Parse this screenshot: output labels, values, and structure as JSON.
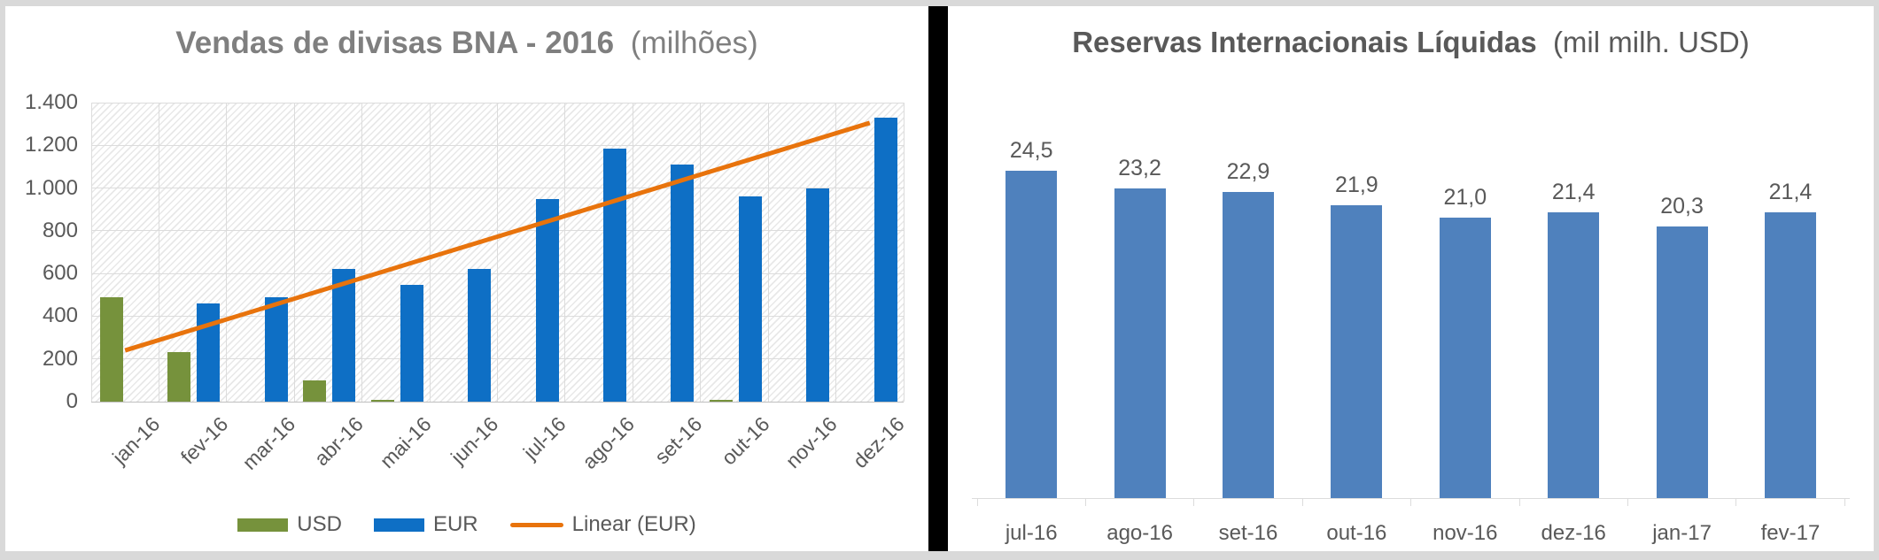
{
  "style": {
    "background": "#d9d9d9",
    "panel_background": "#ffffff",
    "divider_color": "#000000",
    "left_title_color": "#7f7f7f",
    "right_title_color": "#595959",
    "axis_label_color": "#595959",
    "gridline_color": "#dcdcdc",
    "baseline_color": "#bfbfbf",
    "usd_green": "#76923C",
    "eur_blue": "#0E6FC5",
    "trend_orange": "#E8730C",
    "reserves_blue": "#4F81BD"
  },
  "chart_data": [
    {
      "type": "bar",
      "title": "Vendas de divisas BNA - 2016",
      "title_note": "(milhões)",
      "categories": [
        "jan-16",
        "fev-16",
        "mar-16",
        "abr-16",
        "mai-16",
        "jun-16",
        "jul-16",
        "ago-16",
        "set-16",
        "out-16",
        "nov-16",
        "dez-16"
      ],
      "series": [
        {
          "name": "USD",
          "color": "#76923C",
          "values": [
            490,
            230,
            0,
            100,
            10,
            0,
            0,
            0,
            0,
            10,
            0,
            0
          ]
        },
        {
          "name": "EUR",
          "color": "#0E6FC5",
          "values": [
            0,
            460,
            490,
            620,
            545,
            620,
            950,
            1185,
            1110,
            960,
            1000,
            1330
          ]
        }
      ],
      "trendline": {
        "label": "Linear (EUR)",
        "color": "#E8730C",
        "applies_to": "EUR",
        "start_value": 240,
        "end_value": 1305
      },
      "ylim": [
        0,
        1400
      ],
      "y_tick_step": 200,
      "y_tick_labels": [
        "0",
        "200",
        "400",
        "600",
        "800",
        "1.000",
        "1.200",
        "1.400"
      ],
      "grid": true,
      "plot_fill": "light diagonal hatch",
      "legend_position": "bottom",
      "legend": [
        "USD",
        "EUR",
        "Linear (EUR)"
      ]
    },
    {
      "type": "bar",
      "title": "Reservas Internacionais Líquidas",
      "title_note": "(mil milh. USD)",
      "categories": [
        "jul-16",
        "ago-16",
        "set-16",
        "out-16",
        "nov-16",
        "dez-16",
        "jan-17",
        "fev-17"
      ],
      "values": [
        24.5,
        23.2,
        22.9,
        21.9,
        21.0,
        21.4,
        20.3,
        21.4
      ],
      "data_labels": [
        "24,5",
        "23,2",
        "22,9",
        "21,9",
        "21,0",
        "21,4",
        "20,3",
        "21,4"
      ],
      "bar_color": "#4F81BD",
      "ylim": [
        0,
        27
      ],
      "grid": false,
      "legend_position": "none"
    }
  ]
}
